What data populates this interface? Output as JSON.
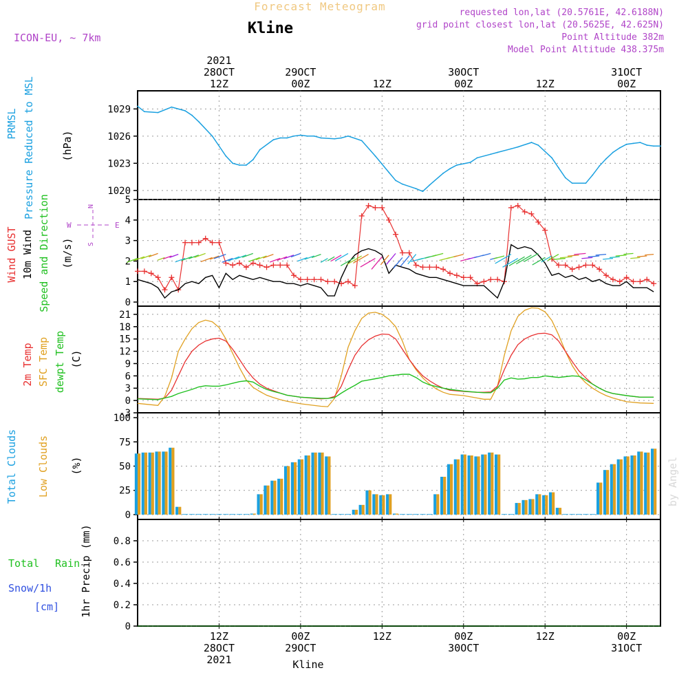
{
  "header": {
    "title_top": "Forecast Meteogram",
    "station": "Kline",
    "model": "ICON-EU, ~ 7km",
    "requested": "requested lon,lat (20.5761E, 42.6188N)",
    "grid": "grid point closest lon,lat (20.5625E, 42.625N)",
    "altitude": "Point Altitude 382m",
    "model_altitude": "Model Point Altitude 438.375m",
    "footer": "Kline",
    "watermark": "by Angel"
  },
  "time_axis": {
    "top_labels": [
      {
        "hour": 12,
        "lines": [
          "2021",
          "28OCT",
          "12Z"
        ]
      },
      {
        "hour": 24,
        "lines": [
          "29OCT",
          "00Z"
        ]
      },
      {
        "hour": 36,
        "lines": [
          "12Z"
        ]
      },
      {
        "hour": 48,
        "lines": [
          "30OCT",
          "00Z"
        ]
      },
      {
        "hour": 60,
        "lines": [
          "12Z"
        ]
      },
      {
        "hour": 72,
        "lines": [
          "31OCT",
          "00Z"
        ]
      }
    ],
    "bottom_labels": [
      {
        "hour": 12,
        "lines": [
          "12Z",
          "28OCT",
          "2021"
        ]
      },
      {
        "hour": 24,
        "lines": [
          "00Z",
          "29OCT"
        ]
      },
      {
        "hour": 36,
        "lines": [
          "12Z"
        ]
      },
      {
        "hour": 48,
        "lines": [
          "00Z",
          "30OCT"
        ]
      },
      {
        "hour": 60,
        "lines": [
          "12Z"
        ]
      },
      {
        "hour": 72,
        "lines": [
          "00Z",
          "31OCT"
        ]
      }
    ]
  },
  "panel_labels": {
    "pressure": [
      "PRMSL",
      "Pressure Reduced to MSL"
    ],
    "pressure_unit": "(hPa)",
    "wind": [
      "Wind GUST",
      "10m Wind",
      "Speed and Direction"
    ],
    "wind_unit": "(m/s)",
    "compass": {
      "n": "N",
      "s": "S",
      "w": "W",
      "e": "E"
    },
    "temp": [
      "2m Temp",
      "SFC Temp",
      "dewpt Temp"
    ],
    "temp_unit": "(C)",
    "clouds": [
      "Total Clouds",
      "Low Clouds"
    ],
    "clouds_unit": "(%)",
    "precip": [
      "Total",
      "Rain",
      "Snow/1h",
      "[cm]"
    ],
    "precip_unit": "1hr Precip (mm)"
  },
  "colors": {
    "pressure": "#1aa0e0",
    "gust": "#e83030",
    "wind": "#000000",
    "t2m": "#e83030",
    "tsfc": "#e0a020",
    "dewpt": "#20c020",
    "total_clouds": "#1aa0e0",
    "low_clouds": "#e0a020",
    "rain": "#20c020",
    "snow": "#3050e0",
    "header": "#b044c8"
  },
  "chart_data": [
    {
      "type": "line",
      "title": "PRMSL Pressure Reduced to MSL",
      "ylabel": "(hPa)",
      "ylim": [
        1019,
        1031
      ],
      "yticks": [
        1020,
        1023,
        1026,
        1029
      ],
      "x": [
        0,
        1,
        3,
        5,
        7,
        8,
        9,
        11,
        13,
        14,
        15,
        16,
        17,
        18,
        20,
        21,
        22,
        23,
        24,
        25,
        26,
        27,
        29,
        30,
        31,
        33,
        35,
        37,
        38,
        39,
        41,
        42,
        43,
        45,
        46,
        47,
        49,
        50,
        52,
        53,
        55,
        56,
        58,
        59,
        61,
        62,
        63,
        64,
        66,
        67,
        68,
        69,
        70,
        71,
        72,
        73,
        74,
        75,
        76,
        77
      ],
      "series": [
        {
          "values": [
            1029.3,
            1028.7,
            1028.6,
            1029.2,
            1028.8,
            1028.3,
            1027.6,
            1026.0,
            1023.8,
            1023.0,
            1022.8,
            1022.8,
            1023.4,
            1024.5,
            1025.6,
            1025.8,
            1025.8,
            1026.0,
            1026.1,
            1026.0,
            1026.0,
            1025.8,
            1025.7,
            1025.8,
            1026.0,
            1025.5,
            1023.8,
            1022.0,
            1021.1,
            1020.7,
            1020.2,
            1019.9,
            1020.6,
            1021.9,
            1022.4,
            1022.8,
            1023.1,
            1023.6,
            1024.0,
            1024.2,
            1024.6,
            1024.8,
            1025.3,
            1025.0,
            1023.6,
            1022.5,
            1021.4,
            1020.8,
            1020.8,
            1021.7,
            1022.7,
            1023.5,
            1024.2,
            1024.7,
            1025.1,
            1025.2,
            1025.3,
            1025.0,
            1024.9,
            1024.9
          ]
        }
      ]
    },
    {
      "type": "line",
      "title": "Wind GUST / 10m Wind",
      "ylabel": "(m/s)",
      "ylim": [
        -0.2,
        5
      ],
      "yticks": [
        0,
        1,
        2,
        3,
        4,
        5
      ],
      "x": [
        0,
        1,
        2,
        3,
        4,
        5,
        6,
        7,
        8,
        9,
        10,
        11,
        12,
        13,
        14,
        15,
        16,
        17,
        18,
        19,
        20,
        21,
        22,
        23,
        24,
        25,
        26,
        27,
        28,
        29,
        30,
        31,
        32,
        33,
        34,
        35,
        36,
        37,
        38,
        39,
        40,
        41,
        42,
        43,
        44,
        45,
        46,
        47,
        48,
        49,
        50,
        51,
        52,
        53,
        54,
        55,
        56,
        57,
        58,
        59,
        60,
        61,
        62,
        63,
        64,
        65,
        66,
        67,
        68,
        69,
        70,
        71,
        72,
        73,
        74,
        75,
        76
      ],
      "series": [
        {
          "name": "Wind GUST",
          "values": [
            1.5,
            1.5,
            1.4,
            1.2,
            0.6,
            1.2,
            0.6,
            2.9,
            2.9,
            2.9,
            3.1,
            2.9,
            2.9,
            1.9,
            1.8,
            1.9,
            1.7,
            1.9,
            1.8,
            1.7,
            1.8,
            1.8,
            1.8,
            1.3,
            1.1,
            1.1,
            1.1,
            1.1,
            1.0,
            1.0,
            0.9,
            1.0,
            0.8,
            4.2,
            4.7,
            4.6,
            4.6,
            4.0,
            3.3,
            2.4,
            2.4,
            1.8,
            1.7,
            1.7,
            1.7,
            1.6,
            1.4,
            1.3,
            1.2,
            1.2,
            0.9,
            1.0,
            1.1,
            1.1,
            1.0,
            4.6,
            4.7,
            4.4,
            4.3,
            3.9,
            3.5,
            2.1,
            1.8,
            1.8,
            1.6,
            1.7,
            1.8,
            1.8,
            1.6,
            1.3,
            1.1,
            1.0,
            1.2,
            1.0,
            1.0,
            1.1,
            0.9
          ]
        },
        {
          "name": "10m Wind",
          "values": [
            1.1,
            1.0,
            0.9,
            0.7,
            0.2,
            0.5,
            0.6,
            0.9,
            1.0,
            0.9,
            1.2,
            1.3,
            0.7,
            1.4,
            1.1,
            1.3,
            1.2,
            1.1,
            1.2,
            1.1,
            1.0,
            1.0,
            0.9,
            0.9,
            0.8,
            0.9,
            0.8,
            0.7,
            0.3,
            0.3,
            1.2,
            1.9,
            2.3,
            2.5,
            2.6,
            2.5,
            2.3,
            1.4,
            1.8,
            1.7,
            1.6,
            1.4,
            1.3,
            1.2,
            1.2,
            1.1,
            1.0,
            0.9,
            0.8,
            0.8,
            0.8,
            0.8,
            0.5,
            0.2,
            1.0,
            2.8,
            2.6,
            2.7,
            2.6,
            2.3,
            1.9,
            1.3,
            1.4,
            1.2,
            1.3,
            1.1,
            1.2,
            1.0,
            1.1,
            0.9,
            0.8,
            0.8,
            1.0,
            0.7,
            0.7,
            0.7,
            0.5
          ]
        }
      ]
    },
    {
      "type": "line",
      "title": "2m Temp / SFC Temp / dewpt Temp",
      "ylabel": "(C)",
      "ylim": [
        -3,
        23
      ],
      "yticks": [
        -3,
        0,
        3,
        6,
        9,
        12,
        15,
        18,
        21
      ],
      "x": [
        0,
        3,
        4,
        5,
        6,
        7,
        8,
        9,
        10,
        11,
        12,
        13,
        14,
        15,
        16,
        17,
        18,
        19,
        20,
        21,
        22,
        24,
        27,
        28,
        29,
        30,
        31,
        32,
        33,
        34,
        35,
        36,
        37,
        38,
        39,
        40,
        41,
        42,
        43,
        44,
        45,
        46,
        48,
        50,
        51,
        52,
        53,
        54,
        55,
        56,
        57,
        58,
        59,
        60,
        61,
        62,
        63,
        64,
        65,
        66,
        67,
        68,
        69,
        70,
        72,
        74,
        76
      ],
      "series": [
        {
          "name": "2m Temp",
          "values": [
            0.5,
            0.3,
            0.6,
            2.5,
            6.0,
            9.5,
            12.0,
            13.5,
            14.5,
            15.0,
            15.2,
            14.5,
            12.5,
            10.0,
            7.5,
            5.5,
            4.0,
            3.0,
            2.4,
            1.8,
            1.3,
            0.8,
            0.4,
            0.5,
            1.0,
            3.5,
            7.5,
            11.0,
            13.3,
            14.8,
            15.7,
            16.2,
            16.1,
            15.0,
            12.5,
            10.0,
            7.8,
            6.0,
            4.8,
            3.8,
            3.0,
            2.5,
            2.2,
            2.0,
            2.0,
            2.1,
            3.5,
            7.5,
            11.0,
            13.6,
            15.0,
            15.8,
            16.3,
            16.4,
            16.0,
            14.5,
            12.0,
            9.5,
            7.2,
            5.5,
            4.0,
            3.0,
            2.2,
            1.7,
            1.2,
            0.8,
            0.8
          ]
        },
        {
          "name": "SFC Temp",
          "values": [
            -0.7,
            -1.2,
            1.0,
            5.5,
            12.0,
            15.0,
            17.5,
            19.0,
            19.6,
            19.2,
            17.8,
            15.0,
            11.5,
            8.0,
            5.0,
            3.2,
            2.2,
            1.3,
            0.7,
            0.2,
            -0.2,
            -0.8,
            -1.4,
            -1.5,
            0.5,
            6.0,
            13.0,
            17.0,
            20.0,
            21.3,
            21.5,
            21.0,
            19.8,
            18.0,
            14.5,
            10.0,
            7.5,
            5.5,
            4.0,
            2.8,
            2.0,
            1.5,
            1.2,
            0.6,
            0.3,
            0.3,
            3.5,
            11.0,
            17.0,
            20.5,
            22.0,
            22.6,
            22.5,
            21.6,
            19.5,
            16.0,
            12.0,
            8.5,
            6.0,
            4.3,
            3.0,
            2.0,
            1.2,
            0.6,
            -0.3,
            -0.6,
            -0.7
          ]
        },
        {
          "name": "dewpt Temp",
          "values": [
            0.4,
            0.2,
            0.6,
            1.0,
            1.7,
            2.2,
            2.7,
            3.3,
            3.6,
            3.5,
            3.5,
            3.8,
            4.2,
            4.6,
            4.8,
            4.5,
            3.5,
            2.7,
            2.2,
            1.8,
            1.3,
            0.8,
            0.5,
            0.5,
            0.7,
            1.8,
            2.8,
            3.7,
            4.7,
            5.0,
            5.3,
            5.6,
            6.0,
            6.2,
            6.4,
            6.4,
            5.6,
            4.5,
            3.8,
            3.4,
            3.0,
            2.7,
            2.3,
            2.0,
            1.9,
            1.9,
            3.0,
            5.0,
            5.5,
            5.2,
            5.3,
            5.6,
            5.6,
            6.0,
            5.8,
            5.6,
            5.8,
            6.0,
            5.9,
            5.0,
            4.0,
            3.0,
            2.2,
            1.7,
            1.2,
            0.8,
            0.8
          ]
        }
      ]
    },
    {
      "type": "bar",
      "title": "Total Clouds / Low Clouds",
      "ylabel": "(%)",
      "ylim": [
        -5,
        105
      ],
      "yticks": [
        0,
        25,
        50,
        75,
        100
      ],
      "x": [
        0,
        1,
        2,
        3,
        4,
        5,
        6,
        7,
        8,
        9,
        10,
        11,
        12,
        13,
        14,
        15,
        16,
        17,
        18,
        19,
        20,
        21,
        22,
        23,
        24,
        25,
        26,
        27,
        28,
        29,
        30,
        31,
        32,
        33,
        34,
        35,
        36,
        37,
        38,
        39,
        40,
        41,
        42,
        43,
        44,
        45,
        46,
        47,
        48,
        49,
        50,
        51,
        52,
        53,
        54,
        55,
        56,
        57,
        58,
        59,
        60,
        61,
        62,
        63,
        64,
        65,
        66,
        67,
        68,
        69,
        70,
        71,
        72,
        73,
        74,
        75,
        76
      ],
      "series": [
        {
          "name": "Total Clouds",
          "values": [
            63,
            64,
            64,
            65,
            65,
            69,
            8,
            0,
            0,
            0,
            0,
            0,
            0,
            0,
            0,
            0,
            0,
            1,
            21,
            30,
            35,
            37,
            50,
            54,
            57,
            61,
            64,
            64,
            60,
            0,
            0,
            0,
            5,
            10,
            25,
            21,
            20,
            21,
            1,
            0,
            0,
            0,
            0,
            0,
            21,
            39,
            52,
            57,
            62,
            61,
            60,
            62,
            64,
            62,
            0,
            0,
            12,
            15,
            16,
            21,
            20,
            23,
            7,
            0,
            0,
            0,
            0,
            0,
            33,
            46,
            52,
            57,
            60,
            61,
            65,
            64,
            68
          ]
        },
        {
          "name": "Low Clouds",
          "values": [
            63,
            64,
            64,
            65,
            65,
            69,
            8,
            0,
            0,
            0,
            0,
            0,
            0,
            0,
            0,
            0,
            0,
            1,
            21,
            30,
            35,
            37,
            50,
            54,
            57,
            61,
            64,
            64,
            60,
            0,
            0,
            0,
            5,
            10,
            25,
            21,
            20,
            21,
            1,
            0,
            0,
            0,
            0,
            0,
            21,
            39,
            52,
            57,
            62,
            61,
            60,
            62,
            64,
            62,
            0,
            0,
            12,
            15,
            16,
            21,
            20,
            23,
            7,
            0,
            0,
            0,
            0,
            0,
            33,
            46,
            52,
            57,
            60,
            61,
            65,
            64,
            68
          ]
        }
      ]
    },
    {
      "type": "line",
      "title": "1hr Precip",
      "ylabel": "1hr Precip (mm)",
      "ylim": [
        0,
        1
      ],
      "yticks": [
        0,
        0.2,
        0.4,
        0.6,
        0.8
      ],
      "ytick_labels": [
        "0",
        "0.2",
        "0.4",
        "0.6",
        "0.8"
      ],
      "x": [
        0,
        77
      ],
      "series": [
        {
          "name": "Total Rain",
          "values": [
            0,
            0
          ]
        }
      ]
    }
  ]
}
